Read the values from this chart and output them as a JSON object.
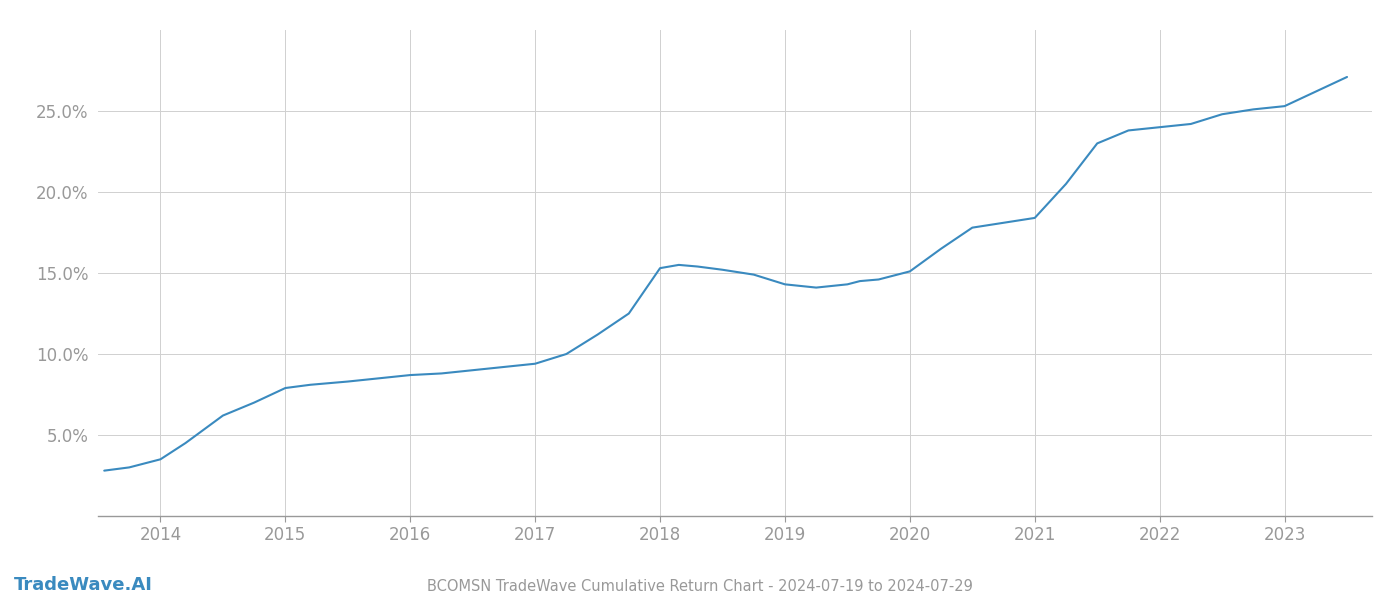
{
  "title": "BCOMSN TradeWave Cumulative Return Chart - 2024-07-19 to 2024-07-29",
  "watermark": "TradeWave.AI",
  "line_color": "#3a8abf",
  "background_color": "#ffffff",
  "grid_color": "#d0d0d0",
  "x_years": [
    2014,
    2015,
    2016,
    2017,
    2018,
    2019,
    2020,
    2021,
    2022,
    2023
  ],
  "x_data": [
    2013.55,
    2013.75,
    2014.0,
    2014.2,
    2014.5,
    2014.75,
    2015.0,
    2015.2,
    2015.5,
    2015.75,
    2016.0,
    2016.25,
    2016.5,
    2016.75,
    2017.0,
    2017.25,
    2017.5,
    2017.75,
    2018.0,
    2018.15,
    2018.3,
    2018.5,
    2018.75,
    2019.0,
    2019.25,
    2019.5,
    2019.6,
    2019.75,
    2020.0,
    2020.25,
    2020.5,
    2020.75,
    2021.0,
    2021.25,
    2021.5,
    2021.75,
    2022.0,
    2022.25,
    2022.5,
    2022.75,
    2023.0,
    2023.25,
    2023.5
  ],
  "y_data": [
    2.8,
    3.0,
    3.5,
    4.5,
    6.2,
    7.0,
    7.9,
    8.1,
    8.3,
    8.5,
    8.7,
    8.8,
    9.0,
    9.2,
    9.4,
    10.0,
    11.2,
    12.5,
    15.3,
    15.5,
    15.4,
    15.2,
    14.9,
    14.3,
    14.1,
    14.3,
    14.5,
    14.6,
    15.1,
    16.5,
    17.8,
    18.1,
    18.4,
    20.5,
    23.0,
    23.8,
    24.0,
    24.2,
    24.8,
    25.1,
    25.3,
    26.2,
    27.1
  ],
  "ylim": [
    0,
    30
  ],
  "yticks": [
    5.0,
    10.0,
    15.0,
    20.0,
    25.0
  ],
  "xlim": [
    2013.5,
    2023.7
  ],
  "title_fontsize": 10.5,
  "tick_fontsize": 12,
  "watermark_fontsize": 13,
  "line_width": 1.5,
  "axis_color": "#999999",
  "tick_color": "#999999"
}
